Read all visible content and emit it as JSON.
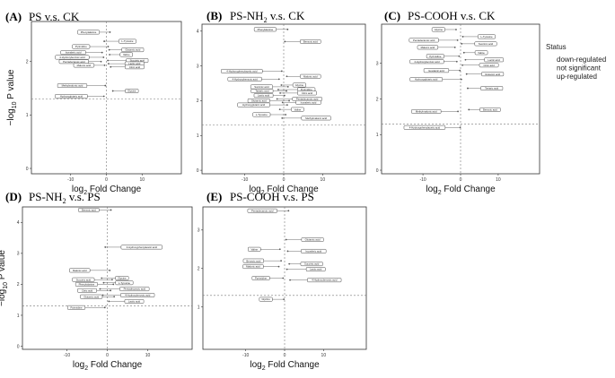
{
  "chart_data": [
    {
      "id": "A",
      "letter": "(A)",
      "title": "PS v.s. CK",
      "title_sub": "",
      "title_rest": "",
      "type": "scatter",
      "xlabel": "log2 Fold Change",
      "ylabel": "-log10 P value",
      "xlim": [
        -21,
        21
      ],
      "ylim": [
        -0.1,
        2.75
      ],
      "xticks": [
        -10,
        0,
        10
      ],
      "yticks": [
        0,
        1,
        2
      ],
      "threshold_y": 1.3,
      "points": [
        {
          "x": 1,
          "y": 2.55,
          "label": "Phenylalanine"
        },
        {
          "x": -0.6,
          "y": 2.38,
          "label": "L-Tyrosine"
        },
        {
          "x": 0.5,
          "y": 2.28,
          "label": "Pyrimidine"
        },
        {
          "x": 0.8,
          "y": 2.22,
          "label": "Glutamic acid"
        },
        {
          "x": -1.2,
          "y": 2.17,
          "label": "Isovaleric acid"
        },
        {
          "x": 0.9,
          "y": 2.13,
          "label": "Valine"
        },
        {
          "x": -0.8,
          "y": 2.08,
          "label": "4-Hydroxybenzoic acid"
        },
        {
          "x": 0.4,
          "y": 2.02,
          "label": "Succinic acid"
        },
        {
          "x": -1.5,
          "y": 2.0,
          "label": "Pentadecanoic acid"
        },
        {
          "x": 0.6,
          "y": 1.96,
          "label": "Lactic acid"
        },
        {
          "x": -0.5,
          "y": 1.93,
          "label": "Malonic acid"
        },
        {
          "x": 1.2,
          "y": 1.9,
          "label": "Citric acid"
        },
        {
          "x": -0.3,
          "y": 1.55,
          "label": "Methylmalonic acid"
        },
        {
          "x": 1.8,
          "y": 1.45,
          "label": "Glycine"
        },
        {
          "x": -0.7,
          "y": 1.35,
          "label": "Hydroxyglutaric acid"
        }
      ]
    },
    {
      "id": "B",
      "letter": "(B)",
      "title": "PS-NH",
      "title_sub": "2",
      "title_rest": " v.s. CK",
      "type": "scatter",
      "xlabel": "log2 Fold Change",
      "ylabel": "",
      "xlim": [
        -21,
        21
      ],
      "ylim": [
        -0.1,
        4.2
      ],
      "xticks": [
        -10,
        0,
        10
      ],
      "yticks": [
        0,
        1,
        2,
        3,
        4
      ],
      "threshold_y": 1.3,
      "points": [
        {
          "x": 1,
          "y": 4.05,
          "label": "Phenylalanine"
        },
        {
          "x": 0.3,
          "y": 3.7,
          "label": "Benzoic acid"
        },
        {
          "x": -0.5,
          "y": 2.85,
          "label": "4-Hydroxyphenylacetic acid"
        },
        {
          "x": 0.8,
          "y": 2.7,
          "label": "Malonic acid"
        },
        {
          "x": -1.2,
          "y": 2.62,
          "label": "4-Hydroxybenzoic acid"
        },
        {
          "x": -0.6,
          "y": 2.45,
          "label": "Glycine"
        },
        {
          "x": 1.1,
          "y": 2.4,
          "label": "Succinic acid"
        },
        {
          "x": -1.4,
          "y": 2.32,
          "label": "Pyrimidine"
        },
        {
          "x": 0.7,
          "y": 2.28,
          "label": "Tartaric acid"
        },
        {
          "x": -0.9,
          "y": 2.22,
          "label": "Citric acid"
        },
        {
          "x": 0.2,
          "y": 2.15,
          "label": "Lactic acid"
        },
        {
          "x": -1.7,
          "y": 2.05,
          "label": "Pentadecanoic acid"
        },
        {
          "x": 1.4,
          "y": 2.0,
          "label": "Glutamic acid"
        },
        {
          "x": -0.3,
          "y": 1.95,
          "label": "Isovaleric acid"
        },
        {
          "x": 0.9,
          "y": 1.88,
          "label": "Hydroxyglutaric acid"
        },
        {
          "x": -1.0,
          "y": 1.75,
          "label": "Valine"
        },
        {
          "x": 0.5,
          "y": 1.6,
          "label": "L-Tyrosine"
        },
        {
          "x": -0.4,
          "y": 1.5,
          "label": "Methylmalonic acid"
        }
      ]
    },
    {
      "id": "C",
      "letter": "(C)",
      "title": "PS-COOH v.s. CK",
      "title_sub": "",
      "title_rest": "",
      "type": "scatter",
      "xlabel": "log2 Fold Change",
      "ylabel": "",
      "xlim": [
        -21,
        21
      ],
      "ylim": [
        -0.1,
        4.1
      ],
      "xticks": [
        -10,
        0,
        10
      ],
      "yticks": [
        0,
        1,
        2,
        3
      ],
      "threshold_y": 1.3,
      "points": [
        {
          "x": -1.2,
          "y": 3.95,
          "label": "Glycine"
        },
        {
          "x": 0.6,
          "y": 3.75,
          "label": "L-Tyrosine"
        },
        {
          "x": -0.8,
          "y": 3.65,
          "label": "Pentadecanoic acid"
        },
        {
          "x": 0.3,
          "y": 3.55,
          "label": "Succinic acid"
        },
        {
          "x": -1.5,
          "y": 3.45,
          "label": "Malonic acid"
        },
        {
          "x": 0.9,
          "y": 3.3,
          "label": "Valine"
        },
        {
          "x": -0.4,
          "y": 3.2,
          "label": "Pyrimidine"
        },
        {
          "x": 1.3,
          "y": 3.1,
          "label": "Lactic acid"
        },
        {
          "x": -1.0,
          "y": 3.05,
          "label": "4-Hydroxybenzoic acid"
        },
        {
          "x": 0.5,
          "y": 2.95,
          "label": "Citric acid"
        },
        {
          "x": -0.2,
          "y": 2.8,
          "label": "Isovaleric acid"
        },
        {
          "x": 1.6,
          "y": 2.7,
          "label": "Glutamic acid"
        },
        {
          "x": 0.2,
          "y": 2.55,
          "label": "Hydroxyglutaric acid"
        },
        {
          "x": 1.9,
          "y": 2.3,
          "label": "Tartaric acid"
        },
        {
          "x": -0.7,
          "y": 1.65,
          "label": "Methylmalonic acid"
        },
        {
          "x": 2.2,
          "y": 1.7,
          "label": "Benzoic acid"
        },
        {
          "x": -0.1,
          "y": 1.2,
          "label": "4-Hydroxyphenylacetic acid"
        }
      ]
    },
    {
      "id": "D",
      "letter": "(D)",
      "title": "PS-NH",
      "title_sub": "2",
      "title_rest": " v.s. PS",
      "type": "scatter",
      "xlabel": "log2 Fold Change",
      "ylabel": "-log10 P value",
      "xlim": [
        -21,
        21
      ],
      "ylim": [
        -0.1,
        4.5
      ],
      "xticks": [
        -10,
        0,
        10
      ],
      "yticks": [
        0,
        1,
        2,
        3,
        4
      ],
      "threshold_y": 1.3,
      "points": [
        {
          "x": 0.9,
          "y": 4.4,
          "label": "Benzoic acid"
        },
        {
          "x": -0.5,
          "y": 3.2,
          "label": "4-Hydroxyphenylacetic acid"
        },
        {
          "x": 0.6,
          "y": 2.45,
          "label": "Malonic acid"
        },
        {
          "x": -1.4,
          "y": 2.2,
          "label": "Glycine"
        },
        {
          "x": 1.2,
          "y": 2.15,
          "label": "Succinic acid"
        },
        {
          "x": -0.9,
          "y": 2.05,
          "label": "L-Tyrosine"
        },
        {
          "x": 1.5,
          "y": 2.0,
          "label": "Phenylalanine"
        },
        {
          "x": -1.8,
          "y": 1.85,
          "label": "Pentadecanoic acid"
        },
        {
          "x": 0.8,
          "y": 1.8,
          "label": "Citric acid"
        },
        {
          "x": -1.1,
          "y": 1.65,
          "label": "4-Hydroxybenzoic acid"
        },
        {
          "x": 1.7,
          "y": 1.6,
          "label": "Glutamic acid"
        },
        {
          "x": 0.4,
          "y": 1.45,
          "label": "Lactic acid"
        },
        {
          "x": -0.6,
          "y": 1.25,
          "label": "Pyrimidine"
        }
      ]
    },
    {
      "id": "E",
      "letter": "(E)",
      "title": "PS-COOH v.s. PS",
      "title_sub": "",
      "title_rest": "",
      "type": "scatter",
      "xlabel": "log2 Fold Change",
      "ylabel": "",
      "xlim": [
        -21,
        21
      ],
      "ylim": [
        -0.1,
        3.6
      ],
      "xticks": [
        -10,
        0,
        10
      ],
      "yticks": [
        1,
        2,
        3
      ],
      "threshold_y": 1.3,
      "points": [
        {
          "x": 1.0,
          "y": 3.5,
          "label": "Pentadecanoic acid"
        },
        {
          "x": 0.4,
          "y": 2.75,
          "label": "Glutamic acid"
        },
        {
          "x": -1.2,
          "y": 2.5,
          "label": "Valine"
        },
        {
          "x": 0.8,
          "y": 2.45,
          "label": "Isovaleric acid"
        },
        {
          "x": -0.9,
          "y": 2.2,
          "label": "Benzoic acid"
        },
        {
          "x": 1.2,
          "y": 2.12,
          "label": "Succinic acid"
        },
        {
          "x": -1.5,
          "y": 2.05,
          "label": "Malonic acid"
        },
        {
          "x": 0.6,
          "y": 1.98,
          "label": "Lactic acid"
        },
        {
          "x": -0.4,
          "y": 1.75,
          "label": "Pyrimidine"
        },
        {
          "x": 1.4,
          "y": 1.7,
          "label": "4-Hydroxybenzoic acid"
        },
        {
          "x": -0.2,
          "y": 1.2,
          "label": "Glycine"
        }
      ]
    }
  ],
  "legend": {
    "title": "Status",
    "items": [
      {
        "label": "down-regulated"
      },
      {
        "label": "not significant"
      },
      {
        "label": "up-regulated"
      }
    ]
  }
}
